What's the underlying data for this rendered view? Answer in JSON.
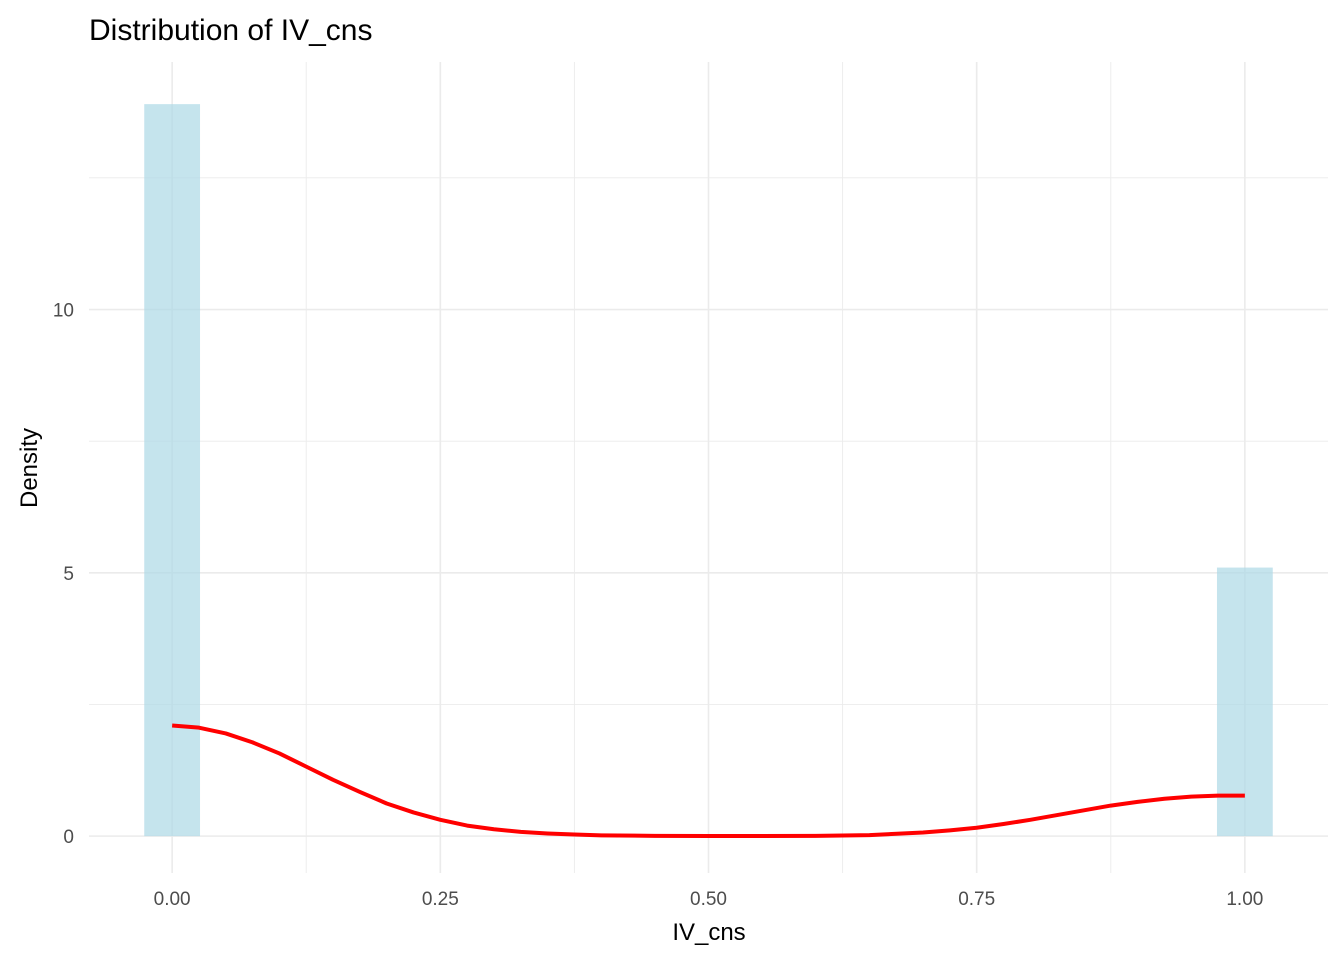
{
  "chart_data": {
    "type": "histogram",
    "title": "Distribution of IV_cns",
    "xlabel": "IV_cns",
    "ylabel": "Density",
    "xlim": [
      -0.0775,
      1.0775
    ],
    "ylim": [
      -0.7,
      14.7
    ],
    "x_ticks": [
      {
        "value": 0,
        "label": "0.00"
      },
      {
        "value": 0.25,
        "label": "0.25"
      },
      {
        "value": 0.5,
        "label": "0.50"
      },
      {
        "value": 0.75,
        "label": "0.75"
      },
      {
        "value": 1,
        "label": "1.00"
      }
    ],
    "x_minor_ticks": [
      0.125,
      0.375,
      0.625,
      0.875
    ],
    "y_ticks": [
      {
        "value": 0,
        "label": "0"
      },
      {
        "value": 5,
        "label": "5"
      },
      {
        "value": 10,
        "label": "10"
      }
    ],
    "y_minor_ticks": [
      2.5,
      7.5,
      12.5
    ],
    "grid": true,
    "bars": [
      {
        "x_start": -0.026,
        "x_end": 0.026,
        "density": 13.9
      },
      {
        "x_start": 0.974,
        "x_end": 1.026,
        "density": 5.1
      }
    ],
    "density_curve": {
      "name": "density",
      "x": [
        0,
        0.025,
        0.05,
        0.075,
        0.1,
        0.125,
        0.15,
        0.175,
        0.2,
        0.225,
        0.25,
        0.275,
        0.3,
        0.325,
        0.35,
        0.375,
        0.4,
        0.45,
        0.5,
        0.55,
        0.6,
        0.65,
        0.7,
        0.725,
        0.75,
        0.775,
        0.8,
        0.825,
        0.85,
        0.875,
        0.9,
        0.925,
        0.95,
        0.975,
        1
      ],
      "y": [
        2.1,
        2.06,
        1.95,
        1.78,
        1.57,
        1.32,
        1.07,
        0.84,
        0.62,
        0.45,
        0.31,
        0.2,
        0.13,
        0.08,
        0.05,
        0.03,
        0.015,
        0.005,
        0.002,
        0.002,
        0.005,
        0.02,
        0.07,
        0.11,
        0.16,
        0.23,
        0.31,
        0.4,
        0.49,
        0.58,
        0.65,
        0.71,
        0.75,
        0.77,
        0.77
      ]
    },
    "colors": {
      "bar_fill": "#add8e6",
      "bar_opacity": 0.7,
      "curve": "#ff0000",
      "grid": "#ebebeb",
      "background": "#ffffff"
    }
  }
}
